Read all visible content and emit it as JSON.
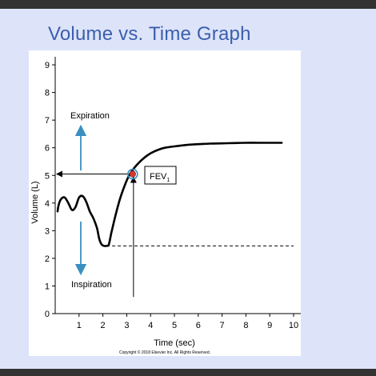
{
  "slide": {
    "title": "Volume vs. Time Graph"
  },
  "chart_data": {
    "type": "line",
    "title": "",
    "xlabel": "Time (sec)",
    "ylabel": "Volume (L)",
    "xlim": [
      0,
      10.3
    ],
    "ylim": [
      0,
      9.5
    ],
    "xticks": [
      1,
      2,
      3,
      4,
      5,
      6,
      7,
      8,
      9,
      10
    ],
    "yticks": [
      0,
      1,
      2,
      3,
      4,
      5,
      6,
      7,
      8,
      9
    ],
    "grid": false,
    "series": [
      {
        "x": [
          0.1,
          0.15,
          0.25,
          0.4,
          0.55,
          0.7,
          0.85,
          1.0,
          1.15,
          1.3,
          1.45,
          1.6,
          1.75,
          1.85,
          1.95,
          2.05,
          2.15,
          2.25,
          2.35,
          2.5,
          2.7,
          2.9,
          3.1,
          3.3,
          3.5,
          3.75,
          4.0,
          4.3,
          4.6,
          5.0,
          5.5,
          6.0,
          6.5,
          7.0,
          7.5,
          8.0,
          8.5,
          9.0,
          9.5
        ],
        "y": [
          3.7,
          3.95,
          4.15,
          4.2,
          4.0,
          3.75,
          3.85,
          4.2,
          4.25,
          4.05,
          3.7,
          3.45,
          3.1,
          2.7,
          2.5,
          2.45,
          2.45,
          2.5,
          2.9,
          3.45,
          4.1,
          4.6,
          5.0,
          5.25,
          5.45,
          5.65,
          5.8,
          5.92,
          6.0,
          6.05,
          6.1,
          6.13,
          6.15,
          6.16,
          6.17,
          6.18,
          6.18,
          6.18,
          6.18
        ]
      }
    ],
    "reference_line": {
      "y": 2.45,
      "x_from": 2.15,
      "x_to": 10.0,
      "style": "dashed"
    },
    "annotations": {
      "expiration": "Expiration",
      "inspiration": "Inspiration",
      "fev1_main": "FEV",
      "fev1_sub": "1",
      "fev1_point": {
        "x": 3.25,
        "y": 5.05
      },
      "volume_marker_y": 5.05,
      "time_marker_x": 3.25
    },
    "colors": {
      "curve": "#000000",
      "arrows": "#3a8fc1",
      "fev_point": "#d43a2b",
      "fev_ring": "#3a8fc1"
    },
    "copyright": "Copyright © 2018 Elsevier Inc. All Rights Reserved."
  }
}
